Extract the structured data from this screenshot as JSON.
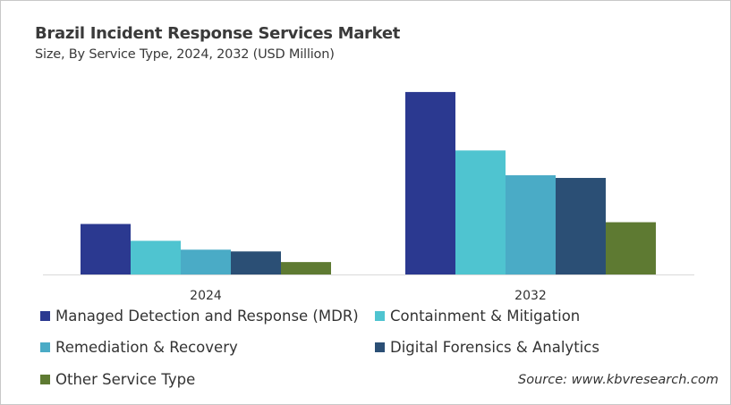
{
  "chart_data": {
    "type": "bar",
    "title": "Brazil Incident Response Services Market",
    "subtitle": "Size, By Service Type, 2024, 2032 (USD Million)",
    "categories": [
      "2024",
      "2032"
    ],
    "series": [
      {
        "name": "Managed Detection and Response (MDR)",
        "color": "#2b3990",
        "values": [
          57,
          206
        ]
      },
      {
        "name": "Containment & Mitigation",
        "color": "#4fc4d0",
        "values": [
          38,
          140
        ]
      },
      {
        "name": "Remediation & Recovery",
        "color": "#4aabc6",
        "values": [
          28,
          112
        ]
      },
      {
        "name": "Digital Forensics & Analytics",
        "color": "#2b4f75",
        "values": [
          26,
          109
        ]
      },
      {
        "name": "Other Service Type",
        "color": "#5e7a32",
        "values": [
          14,
          59
        ]
      }
    ],
    "ylim": [
      0,
      215
    ],
    "grid": false,
    "legend_position": "bottom"
  },
  "source": "Source: www.kbvresearch.com"
}
